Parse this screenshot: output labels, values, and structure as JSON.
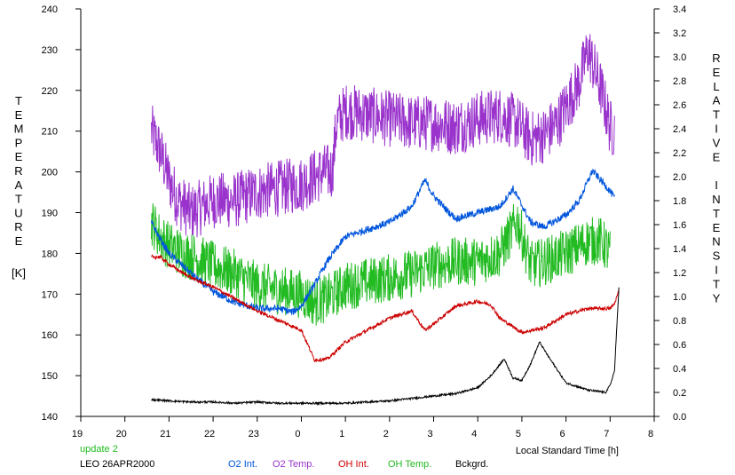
{
  "chart_data": {
    "type": "line",
    "left_axis_label": "TEMPERATURE",
    "left_axis_unit": "[K]",
    "right_axis_label": "RELATIVE INTENSITY",
    "xlabel": "Local Standard Time [h]",
    "xlim": [
      19,
      32
    ],
    "x_ticks": [
      "19",
      "20",
      "21",
      "22",
      "23",
      "0",
      "1",
      "2",
      "3",
      "4",
      "5",
      "6",
      "7",
      "8"
    ],
    "ylim_left": [
      140,
      240
    ],
    "y_ticks_left": [
      "140",
      "150",
      "160",
      "170",
      "180",
      "190",
      "200",
      "210",
      "220",
      "230",
      "240"
    ],
    "ylim_right": [
      0.0,
      3.4
    ],
    "y_ticks_right": [
      "0.0",
      "0.2",
      "0.4",
      "0.6",
      "0.8",
      "1.0",
      "1.2",
      "1.4",
      "1.6",
      "1.8",
      "2.0",
      "2.2",
      "2.4",
      "2.6",
      "2.8",
      "3.0",
      "3.2",
      "3.4"
    ],
    "grid": false,
    "legend": [
      {
        "name": "O2 Int.",
        "color": "#0055dd"
      },
      {
        "name": "O2 Temp.",
        "color": "#9933cc"
      },
      {
        "name": "OH Int.",
        "color": "#cc0000"
      },
      {
        "name": "OH Temp.",
        "color": "#22bb22"
      },
      {
        "name": "Bckgrd.",
        "color": "#000000"
      }
    ],
    "annotation_update": "update 2",
    "annotation_date": "LEO 26APR2000",
    "series": [
      {
        "name": "O2 Temp.",
        "axis": "left",
        "color": "#9933cc",
        "noise": 7,
        "x": [
          20.6,
          20.8,
          21.0,
          21.2,
          21.5,
          22.0,
          22.5,
          23.0,
          23.5,
          24.0,
          24.5,
          24.7,
          24.8,
          25.0,
          25.5,
          26.0,
          26.5,
          27.0,
          27.5,
          28.0,
          28.5,
          28.9,
          29.2,
          29.5,
          29.8,
          30.0,
          30.3,
          30.5,
          30.8,
          31.0,
          31.1
        ],
        "y": [
          210,
          205,
          198,
          193,
          190,
          193,
          193,
          195,
          196,
          197,
          200,
          200,
          212,
          215,
          214,
          213,
          212,
          212,
          211,
          213,
          214,
          212,
          208,
          209,
          212,
          216,
          222,
          230,
          220,
          211,
          210
        ]
      },
      {
        "name": "OH Temp.",
        "axis": "left",
        "color": "#22bb22",
        "noise": 6,
        "x": [
          20.6,
          20.8,
          21.0,
          21.3,
          21.6,
          22.0,
          22.5,
          23.0,
          23.5,
          24.0,
          24.3,
          24.6,
          25.0,
          25.5,
          26.0,
          26.5,
          27.0,
          27.5,
          28.0,
          28.5,
          28.9,
          29.2,
          29.5,
          30.0,
          30.5,
          30.8,
          31.0
        ],
        "y": [
          188,
          184,
          182,
          180,
          179,
          177,
          175,
          172,
          171,
          170,
          168,
          169,
          172,
          173,
          174,
          175,
          177,
          178,
          178,
          180,
          188,
          177,
          178,
          180,
          183,
          183,
          180
        ]
      },
      {
        "name": "O2 Int.",
        "axis": "right",
        "color": "#0055dd",
        "noise": 0.03,
        "x": [
          20.6,
          20.8,
          21.0,
          21.3,
          21.6,
          22.0,
          22.5,
          23.0,
          23.5,
          23.8,
          24.0,
          24.3,
          24.6,
          25.0,
          25.5,
          26.0,
          26.5,
          26.8,
          27.0,
          27.3,
          27.5,
          28.0,
          28.5,
          28.8,
          29.2,
          29.5,
          30.0,
          30.3,
          30.6,
          31.0,
          31.1
        ],
        "y": [
          1.62,
          1.48,
          1.36,
          1.26,
          1.16,
          1.04,
          0.95,
          0.9,
          0.9,
          0.87,
          0.92,
          1.1,
          1.3,
          1.5,
          1.56,
          1.62,
          1.75,
          1.97,
          1.84,
          1.72,
          1.65,
          1.7,
          1.75,
          1.9,
          1.62,
          1.58,
          1.68,
          1.8,
          2.05,
          1.88,
          1.82
        ]
      },
      {
        "name": "OH Int.",
        "axis": "right",
        "color": "#cc0000",
        "noise": 0.015,
        "x": [
          20.6,
          20.8,
          21.0,
          21.3,
          21.6,
          22.0,
          22.5,
          23.0,
          23.5,
          24.0,
          24.3,
          24.6,
          25.0,
          25.5,
          26.0,
          26.5,
          26.8,
          27.0,
          27.5,
          28.0,
          28.3,
          28.5,
          29.0,
          29.5,
          30.0,
          30.5,
          31.0,
          31.1,
          31.2
        ],
        "y": [
          1.33,
          1.33,
          1.27,
          1.2,
          1.14,
          1.08,
          0.98,
          0.88,
          0.8,
          0.72,
          0.47,
          0.48,
          0.62,
          0.72,
          0.82,
          0.88,
          0.72,
          0.77,
          0.92,
          0.96,
          0.93,
          0.82,
          0.7,
          0.74,
          0.85,
          0.9,
          0.9,
          0.94,
          1.05
        ]
      },
      {
        "name": "Bckgrd.",
        "axis": "right",
        "color": "#000000",
        "noise": 0.008,
        "x": [
          20.6,
          21.0,
          21.5,
          22.0,
          22.5,
          23.0,
          23.5,
          24.0,
          24.5,
          25.0,
          25.5,
          26.0,
          26.5,
          27.0,
          27.5,
          28.0,
          28.3,
          28.6,
          28.8,
          29.0,
          29.2,
          29.4,
          29.6,
          30.0,
          30.5,
          30.9,
          31.0,
          31.1,
          31.2
        ],
        "y": [
          0.14,
          0.13,
          0.12,
          0.12,
          0.11,
          0.12,
          0.11,
          0.11,
          0.11,
          0.11,
          0.12,
          0.13,
          0.15,
          0.17,
          0.19,
          0.24,
          0.34,
          0.48,
          0.32,
          0.3,
          0.44,
          0.62,
          0.5,
          0.28,
          0.22,
          0.2,
          0.26,
          0.38,
          1.08
        ]
      }
    ]
  }
}
